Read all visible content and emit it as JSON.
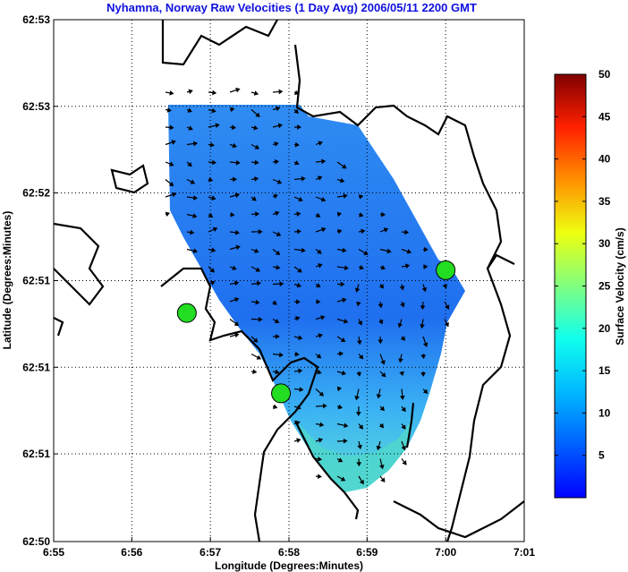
{
  "chart_data": {
    "type": "heatmap",
    "title": "Nyhamna, Norway Raw Velocities (1 Day Avg) 2006/05/11 2200 GMT",
    "xlabel": "Longitude (Degrees:Minutes)",
    "ylabel": "Latitude (Degrees:Minutes)",
    "xlim": [
      6.9167,
      7.0167
    ],
    "ylim": [
      62.8333,
      62.8833
    ],
    "grid": true,
    "x_ticks": [
      {
        "value": 6.9167,
        "label": "6:55"
      },
      {
        "value": 6.9333,
        "label": "6:56"
      },
      {
        "value": 6.95,
        "label": "6:57"
      },
      {
        "value": 6.9667,
        "label": "6:58"
      },
      {
        "value": 6.9833,
        "label": "6:59"
      },
      {
        "value": 7.0,
        "label": "7:00"
      },
      {
        "value": 7.0167,
        "label": "7:01"
      }
    ],
    "y_ticks": [
      {
        "value": 62.8833,
        "label": "62:53"
      },
      {
        "value": 62.875,
        "label": "62:53"
      },
      {
        "value": 62.8667,
        "label": "62:52"
      },
      {
        "value": 62.8583,
        "label": "62:51"
      },
      {
        "value": 62.85,
        "label": "62:51"
      },
      {
        "value": 62.8417,
        "label": "62:51"
      },
      {
        "value": 62.8333,
        "label": "62:50"
      }
    ],
    "colorbar": {
      "label": "Surface Velocity (cm/s)",
      "range": [
        0,
        50
      ],
      "ticks": [
        "5",
        "10",
        "15",
        "20",
        "25",
        "30",
        "35",
        "40",
        "45",
        "50"
      ],
      "tick_values": [
        5,
        10,
        15,
        20,
        25,
        30,
        35,
        40,
        45,
        50
      ],
      "colormap": "jet"
    },
    "stations": [
      {
        "lon": 6.945,
        "lat": 62.8552
      },
      {
        "lon": 6.965,
        "lat": 62.8475
      },
      {
        "lon": 7.0,
        "lat": 62.8593
      }
    ],
    "field_color": "#2f8cf0",
    "coast_color": "#000000",
    "station_color": "#22dd22"
  }
}
